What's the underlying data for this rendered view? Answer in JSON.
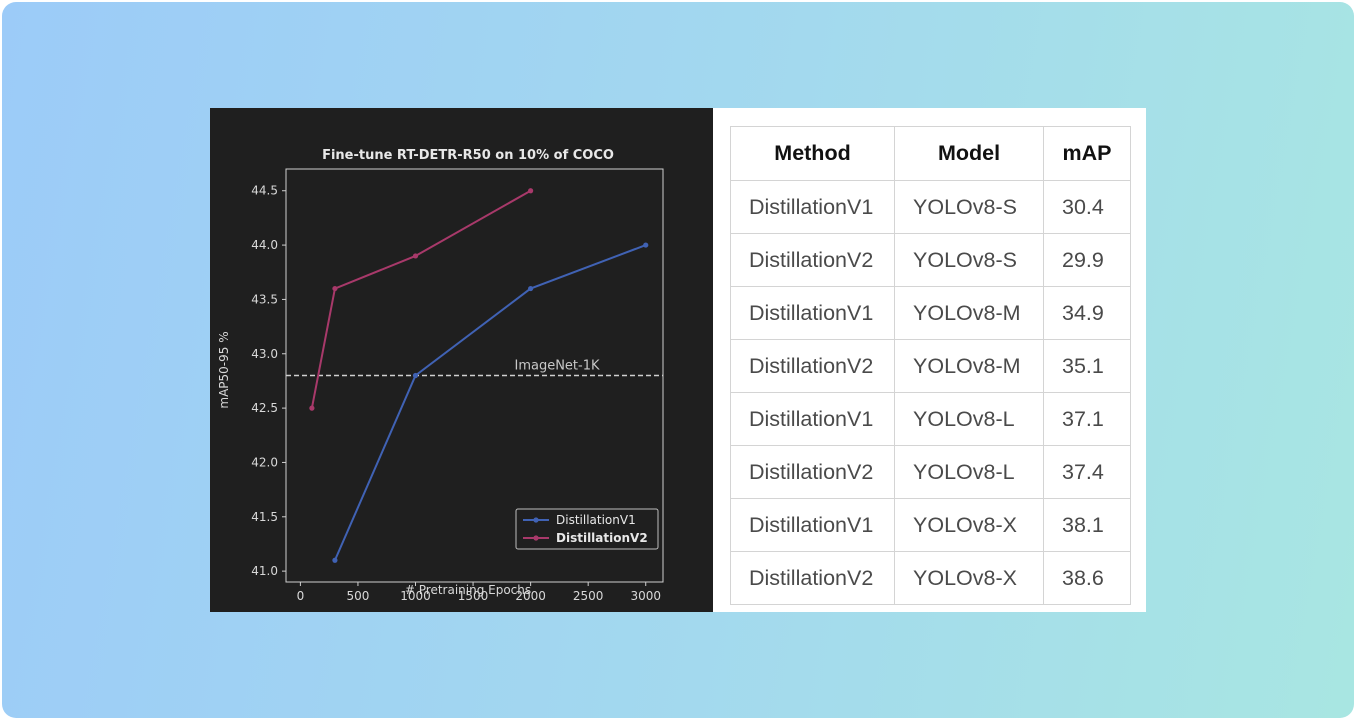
{
  "chart_data": {
    "type": "line",
    "title": "Fine-tune RT-DETR-R50 on 10% of COCO",
    "xlabel": "# Pretraining Epochs",
    "ylabel": "mAP50-95 %",
    "xlim": [
      -125,
      3150
    ],
    "ylim": [
      40.9,
      44.7
    ],
    "xticks": [
      0,
      500,
      1000,
      1500,
      2000,
      2500,
      3000
    ],
    "yticks": [
      "41.0",
      "41.5",
      "42.0",
      "42.5",
      "43.0",
      "43.5",
      "44.0",
      "44.5"
    ],
    "grid": false,
    "legend_position": "lower-right",
    "series": [
      {
        "name": "DistillationV1",
        "color": "#4062b4",
        "x": [
          300,
          1000,
          2000,
          3000
        ],
        "y": [
          41.1,
          42.8,
          43.6,
          44.0
        ]
      },
      {
        "name": "DistillationV2",
        "color": "#a8396a",
        "x": [
          100,
          300,
          1000,
          2000
        ],
        "y": [
          42.5,
          43.6,
          43.9,
          44.5
        ]
      }
    ],
    "reference_line": {
      "label": "ImageNet-1K",
      "y": 42.8,
      "style": "dashed"
    }
  },
  "table": {
    "headers": [
      "Method",
      "Model",
      "mAP"
    ],
    "rows": [
      [
        "DistillationV1",
        "YOLOv8-S",
        "30.4"
      ],
      [
        "DistillationV2",
        "YOLOv8-S",
        "29.9"
      ],
      [
        "DistillationV1",
        "YOLOv8-M",
        "34.9"
      ],
      [
        "DistillationV2",
        "YOLOv8-M",
        "35.1"
      ],
      [
        "DistillationV1",
        "YOLOv8-L",
        "37.1"
      ],
      [
        "DistillationV2",
        "YOLOv8-L",
        "37.4"
      ],
      [
        "DistillationV1",
        "YOLOv8-X",
        "38.1"
      ],
      [
        "DistillationV2",
        "YOLOv8-X",
        "38.6"
      ]
    ]
  }
}
